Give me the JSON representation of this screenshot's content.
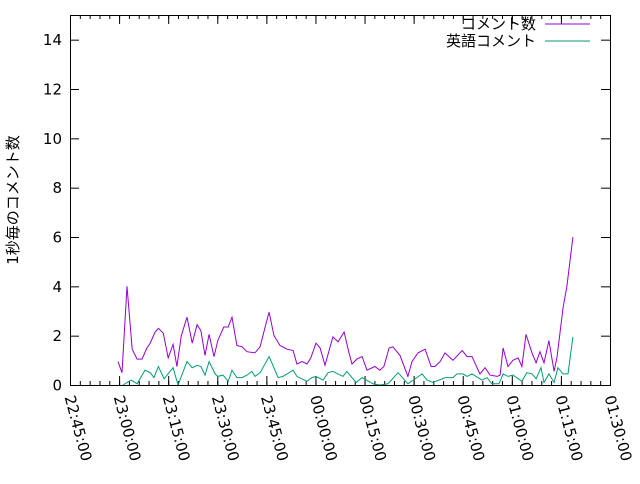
{
  "chart_data": {
    "type": "line",
    "title": "",
    "xlabel": "",
    "ylabel": "1秒毎のコメント数",
    "xlim": [
      "22:45:00",
      "01:30:00"
    ],
    "ylim": [
      0,
      15
    ],
    "x_tick_labels": [
      "22:45:00",
      "23:00:00",
      "23:15:00",
      "23:30:00",
      "23:45:00",
      "00:00:00",
      "00:15:00",
      "00:30:00",
      "00:45:00",
      "01:00:00",
      "01:15:00",
      "01:30:00"
    ],
    "y_tick_labels": [
      "0",
      "2",
      "4",
      "6",
      "8",
      "10",
      "12",
      "14"
    ],
    "y_ticks": [
      0,
      2,
      4,
      6,
      8,
      10,
      12,
      14
    ],
    "grid": false,
    "legend_placement": "top-right",
    "series": [
      {
        "name": "コメント数",
        "color": "#9400d3",
        "points": [
          [
            "22:59:40",
            0.95
          ],
          [
            "23:00:53",
            0.5
          ],
          [
            "23:02:25",
            4.0
          ],
          [
            "23:04:00",
            1.45
          ],
          [
            "23:05:30",
            1.05
          ],
          [
            "23:07:00",
            1.05
          ],
          [
            "23:08:30",
            1.5
          ],
          [
            "23:09:30",
            1.7
          ],
          [
            "23:11:00",
            2.15
          ],
          [
            "23:12:00",
            2.3
          ],
          [
            "23:13:30",
            2.1
          ],
          [
            "23:15:00",
            1.1
          ],
          [
            "23:16:30",
            1.65
          ],
          [
            "23:17:40",
            0.75
          ],
          [
            "23:19:00",
            2.0
          ],
          [
            "23:20:45",
            2.75
          ],
          [
            "23:22:20",
            1.7
          ],
          [
            "23:23:50",
            2.45
          ],
          [
            "23:25:00",
            2.2
          ],
          [
            "23:26:15",
            1.2
          ],
          [
            "23:27:30",
            2.05
          ],
          [
            "23:29:00",
            1.15
          ],
          [
            "23:30:10",
            1.8
          ],
          [
            "23:32:00",
            2.35
          ],
          [
            "23:33:20",
            2.35
          ],
          [
            "23:34:30",
            2.75
          ],
          [
            "23:36:00",
            1.6
          ],
          [
            "23:37:35",
            1.55
          ],
          [
            "23:39:05",
            1.35
          ],
          [
            "23:41:30",
            1.3
          ],
          [
            "23:43:05",
            1.55
          ],
          [
            "23:44:55",
            2.5
          ],
          [
            "23:45:50",
            2.95
          ],
          [
            "23:47:20",
            2.0
          ],
          [
            "23:49:10",
            1.6
          ],
          [
            "23:51:20",
            1.45
          ],
          [
            "23:53:10",
            1.4
          ],
          [
            "23:54:20",
            0.85
          ],
          [
            "23:55:55",
            0.95
          ],
          [
            "23:57:25",
            0.85
          ],
          [
            "23:58:35",
            1.1
          ],
          [
            "00:00:10",
            1.7
          ],
          [
            "00:01:25",
            1.5
          ],
          [
            "00:02:55",
            0.8
          ],
          [
            "00:05:20",
            1.95
          ],
          [
            "00:06:55",
            1.75
          ],
          [
            "00:08:45",
            2.15
          ],
          [
            "00:10:15",
            1.3
          ],
          [
            "00:11:10",
            0.85
          ],
          [
            "00:12:40",
            1.05
          ],
          [
            "00:14:15",
            1.15
          ],
          [
            "00:15:45",
            0.6
          ],
          [
            "00:18:10",
            0.75
          ],
          [
            "00:19:40",
            0.6
          ],
          [
            "00:20:55",
            0.75
          ],
          [
            "00:22:30",
            1.5
          ],
          [
            "00:23:40",
            1.55
          ],
          [
            "00:25:50",
            1.2
          ],
          [
            "00:28:15",
            0.35
          ],
          [
            "00:29:30",
            0.95
          ],
          [
            "00:31:20",
            1.3
          ],
          [
            "00:33:30",
            1.45
          ],
          [
            "00:35:20",
            0.75
          ],
          [
            "00:36:30",
            0.75
          ],
          [
            "00:38:05",
            0.95
          ],
          [
            "00:39:35",
            1.3
          ],
          [
            "00:42:00",
            1.0
          ],
          [
            "00:44:50",
            1.4
          ],
          [
            "00:46:20",
            1.15
          ],
          [
            "00:47:50",
            1.15
          ],
          [
            "00:50:15",
            0.45
          ],
          [
            "00:51:50",
            0.7
          ],
          [
            "00:53:20",
            0.4
          ],
          [
            "00:55:30",
            0.35
          ],
          [
            "00:56:25",
            0.4
          ],
          [
            "00:57:20",
            1.5
          ],
          [
            "00:58:50",
            0.75
          ],
          [
            "01:00:20",
            1.0
          ],
          [
            "01:01:55",
            1.1
          ],
          [
            "01:03:05",
            0.75
          ],
          [
            "01:04:20",
            2.05
          ],
          [
            "01:06:10",
            1.3
          ],
          [
            "01:07:25",
            0.9
          ],
          [
            "01:08:35",
            1.35
          ],
          [
            "01:09:50",
            0.9
          ],
          [
            "01:11:20",
            1.8
          ],
          [
            "01:12:55",
            0.55
          ],
          [
            "01:13:50",
            1.15
          ],
          [
            "01:15:40",
            3.15
          ],
          [
            "01:16:50",
            4.0
          ],
          [
            "01:18:40",
            6.0
          ]
        ]
      },
      {
        "name": "英語コメント",
        "color": "#009e73",
        "points": [
          [
            "23:01:10",
            0
          ],
          [
            "23:03:40",
            0.2
          ],
          [
            "23:05:30",
            0.05
          ],
          [
            "23:07:55",
            0.6
          ],
          [
            "23:09:30",
            0.5
          ],
          [
            "23:10:40",
            0.3
          ],
          [
            "23:12:00",
            0.75
          ],
          [
            "23:13:45",
            0.25
          ],
          [
            "23:16:30",
            0.7
          ],
          [
            "23:18:00",
            0
          ],
          [
            "23:20:45",
            0.95
          ],
          [
            "23:22:20",
            0.7
          ],
          [
            "23:23:50",
            0.8
          ],
          [
            "23:25:00",
            0.75
          ],
          [
            "23:26:15",
            0.4
          ],
          [
            "23:27:30",
            0.95
          ],
          [
            "23:29:20",
            0.45
          ],
          [
            "23:30:10",
            0.35
          ],
          [
            "23:31:45",
            0.4
          ],
          [
            "23:33:20",
            0.15
          ],
          [
            "23:34:30",
            0.6
          ],
          [
            "23:36:00",
            0.3
          ],
          [
            "23:37:35",
            0.3
          ],
          [
            "23:39:05",
            0.4
          ],
          [
            "23:40:35",
            0.55
          ],
          [
            "23:41:30",
            0.35
          ],
          [
            "23:43:05",
            0.5
          ],
          [
            "23:45:50",
            1.15
          ],
          [
            "23:47:00",
            0.8
          ],
          [
            "23:48:35",
            0.3
          ],
          [
            "23:50:05",
            0.35
          ],
          [
            "23:53:10",
            0.6
          ],
          [
            "23:54:20",
            0.35
          ],
          [
            "23:57:25",
            0.15
          ],
          [
            "23:58:55",
            0.3
          ],
          [
            "00:00:10",
            0.35
          ],
          [
            "00:02:20",
            0.2
          ],
          [
            "00:03:50",
            0.5
          ],
          [
            "00:05:20",
            0.55
          ],
          [
            "00:08:25",
            0.35
          ],
          [
            "00:09:35",
            0.55
          ],
          [
            "00:12:25",
            0.1
          ],
          [
            "00:14:15",
            0.3
          ],
          [
            "00:17:35",
            0.05
          ],
          [
            "00:19:40",
            0
          ],
          [
            "00:22:10",
            0.05
          ],
          [
            "00:25:15",
            0.5
          ],
          [
            "00:28:15",
            0.05
          ],
          [
            "00:32:35",
            0.45
          ],
          [
            "00:34:05",
            0.2
          ],
          [
            "00:35:55",
            0.1
          ],
          [
            "00:39:35",
            0.3
          ],
          [
            "00:42:00",
            0.3
          ],
          [
            "00:43:15",
            0.45
          ],
          [
            "00:45:05",
            0.45
          ],
          [
            "00:46:20",
            0.35
          ],
          [
            "00:47:50",
            0.45
          ],
          [
            "00:50:55",
            0.2
          ],
          [
            "00:52:25",
            0.3
          ],
          [
            "00:53:55",
            0.05
          ],
          [
            "00:56:05",
            0.05
          ],
          [
            "00:57:20",
            0.45
          ],
          [
            "00:58:50",
            0.35
          ],
          [
            "01:00:20",
            0.4
          ],
          [
            "01:03:05",
            0.15
          ],
          [
            "01:04:35",
            0.5
          ],
          [
            "01:06:10",
            0.45
          ],
          [
            "01:07:25",
            0.25
          ],
          [
            "01:08:55",
            0.7
          ],
          [
            "01:09:50",
            0.1
          ],
          [
            "01:11:20",
            0.45
          ],
          [
            "01:12:55",
            0.1
          ],
          [
            "01:14:05",
            0.7
          ],
          [
            "01:15:40",
            0.45
          ],
          [
            "01:17:10",
            0.45
          ],
          [
            "01:18:40",
            1.95
          ]
        ]
      }
    ]
  }
}
